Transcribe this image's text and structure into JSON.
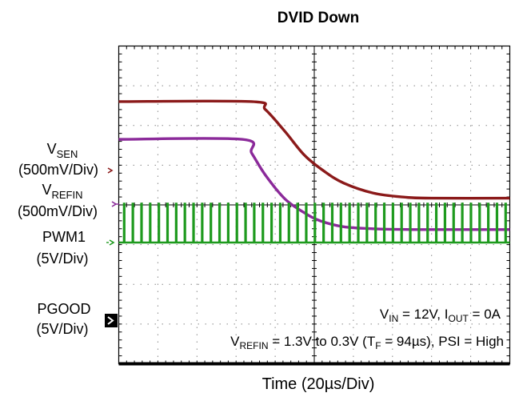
{
  "chart_data": {
    "type": "line",
    "title": "DVID Down",
    "xlabel": "Time (20µs/Div)",
    "x_divisions": 10,
    "y_divisions": 8,
    "grid": true,
    "channels": [
      {
        "name": "VSEN",
        "label_main": "V",
        "label_sub": "SEN",
        "scale": "(500mV/Div)",
        "color": "#8b1a1a",
        "marker_color": "#8b1a1a"
      },
      {
        "name": "VREFIN",
        "label_main": "V",
        "label_sub": "REFIN",
        "scale": "(500mV/Div)",
        "color": "#8b2a9a",
        "marker_color": "#8b2a9a"
      },
      {
        "name": "PWM1",
        "label_main": "PWM1",
        "label_sub": "",
        "scale": "(5V/Div)",
        "color": "#1e9a1e",
        "marker_color": "#1e9a1e"
      },
      {
        "name": "PGOOD",
        "label_main": "PGOOD",
        "label_sub": "",
        "scale": "(5V/Div)",
        "color": "#000000",
        "marker_color": "#000000"
      }
    ],
    "series": [
      {
        "name": "VSEN",
        "x": [
          0,
          6.8,
          7.5,
          8.5,
          9.5,
          10.5,
          11.5,
          13,
          14.5,
          16,
          20
        ],
        "y": [
          6.6,
          6.6,
          6.4,
          5.85,
          5.25,
          4.85,
          4.55,
          4.3,
          4.2,
          4.17,
          4.17
        ]
      },
      {
        "name": "VREFIN",
        "x": [
          0,
          6.3,
          6.8,
          7.5,
          8.5,
          9.5,
          10.3,
          11.5,
          13,
          15,
          20
        ],
        "y": [
          5.65,
          5.65,
          5.3,
          4.75,
          4.15,
          3.8,
          3.6,
          3.45,
          3.4,
          3.38,
          3.38
        ]
      },
      {
        "name": "PGOOD",
        "x": [
          0,
          20
        ],
        "y": [
          0.0,
          0.0
        ]
      }
    ],
    "annotations": {
      "vin_line": {
        "v_sub": "IN",
        "vin_value": " = 12V, ",
        "i_main": "I",
        "i_sub": "OUT",
        "iout_value": " = 0A"
      },
      "refin_line": {
        "v_sub": "REFIN",
        "mid": " = 1.3V to 0.3V (T",
        "t_sub": "F",
        "rest": " = 94µs), PSI  = High"
      }
    }
  }
}
